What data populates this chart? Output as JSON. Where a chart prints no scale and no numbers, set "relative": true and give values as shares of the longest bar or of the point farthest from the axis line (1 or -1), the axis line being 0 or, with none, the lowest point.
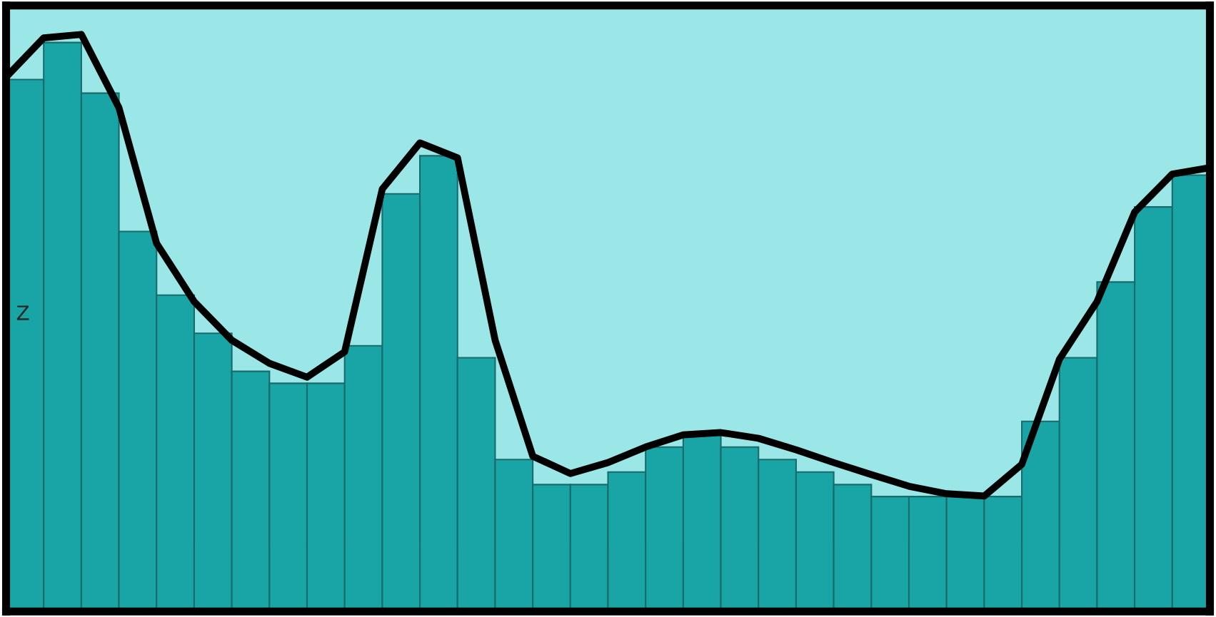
{
  "chart_data": [
    {
      "type": "bar",
      "relative": true,
      "color": "#19a5a5",
      "annotations": [
        "Z"
      ],
      "categories": [
        null,
        null,
        null,
        null,
        null,
        null,
        null,
        null,
        null,
        null,
        null,
        null,
        null,
        null,
        null,
        null,
        null,
        null,
        null,
        null,
        null,
        null,
        null,
        null,
        null,
        null,
        null,
        null,
        null,
        null,
        null,
        null
      ],
      "values": [
        0.935,
        1,
        0.911,
        0.668,
        0.556,
        0.489,
        0.422,
        0.401,
        0.401,
        0.467,
        0.734,
        0.801,
        0.446,
        0.267,
        0.223,
        0.223,
        0.245,
        0.289,
        0.311,
        0.289,
        0.267,
        0.245,
        0.223,
        0.202,
        0.202,
        0.202,
        0.202,
        0.334,
        0.446,
        0.579,
        0.711,
        0.767
      ]
    },
    {
      "type": "line",
      "relative": true,
      "color": "#000000",
      "categories": [
        null,
        null,
        null,
        null,
        null,
        null,
        null,
        null,
        null,
        null,
        null,
        null,
        null,
        null,
        null,
        null,
        null,
        null,
        null,
        null,
        null,
        null,
        null,
        null,
        null,
        null,
        null,
        null,
        null,
        null,
        null,
        null,
        null
      ],
      "values": [
        0.926,
        0.994,
        1,
        0.873,
        0.638,
        0.537,
        0.47,
        0.43,
        0.406,
        0.45,
        0.732,
        0.812,
        0.786,
        0.47,
        0.269,
        0.239,
        0.258,
        0.285,
        0.306,
        0.31,
        0.3,
        0.28,
        0.258,
        0.237,
        0.217,
        0.204,
        0.2,
        0.255,
        0.437,
        0.537,
        0.692,
        0.758,
        0.769
      ]
    }
  ]
}
